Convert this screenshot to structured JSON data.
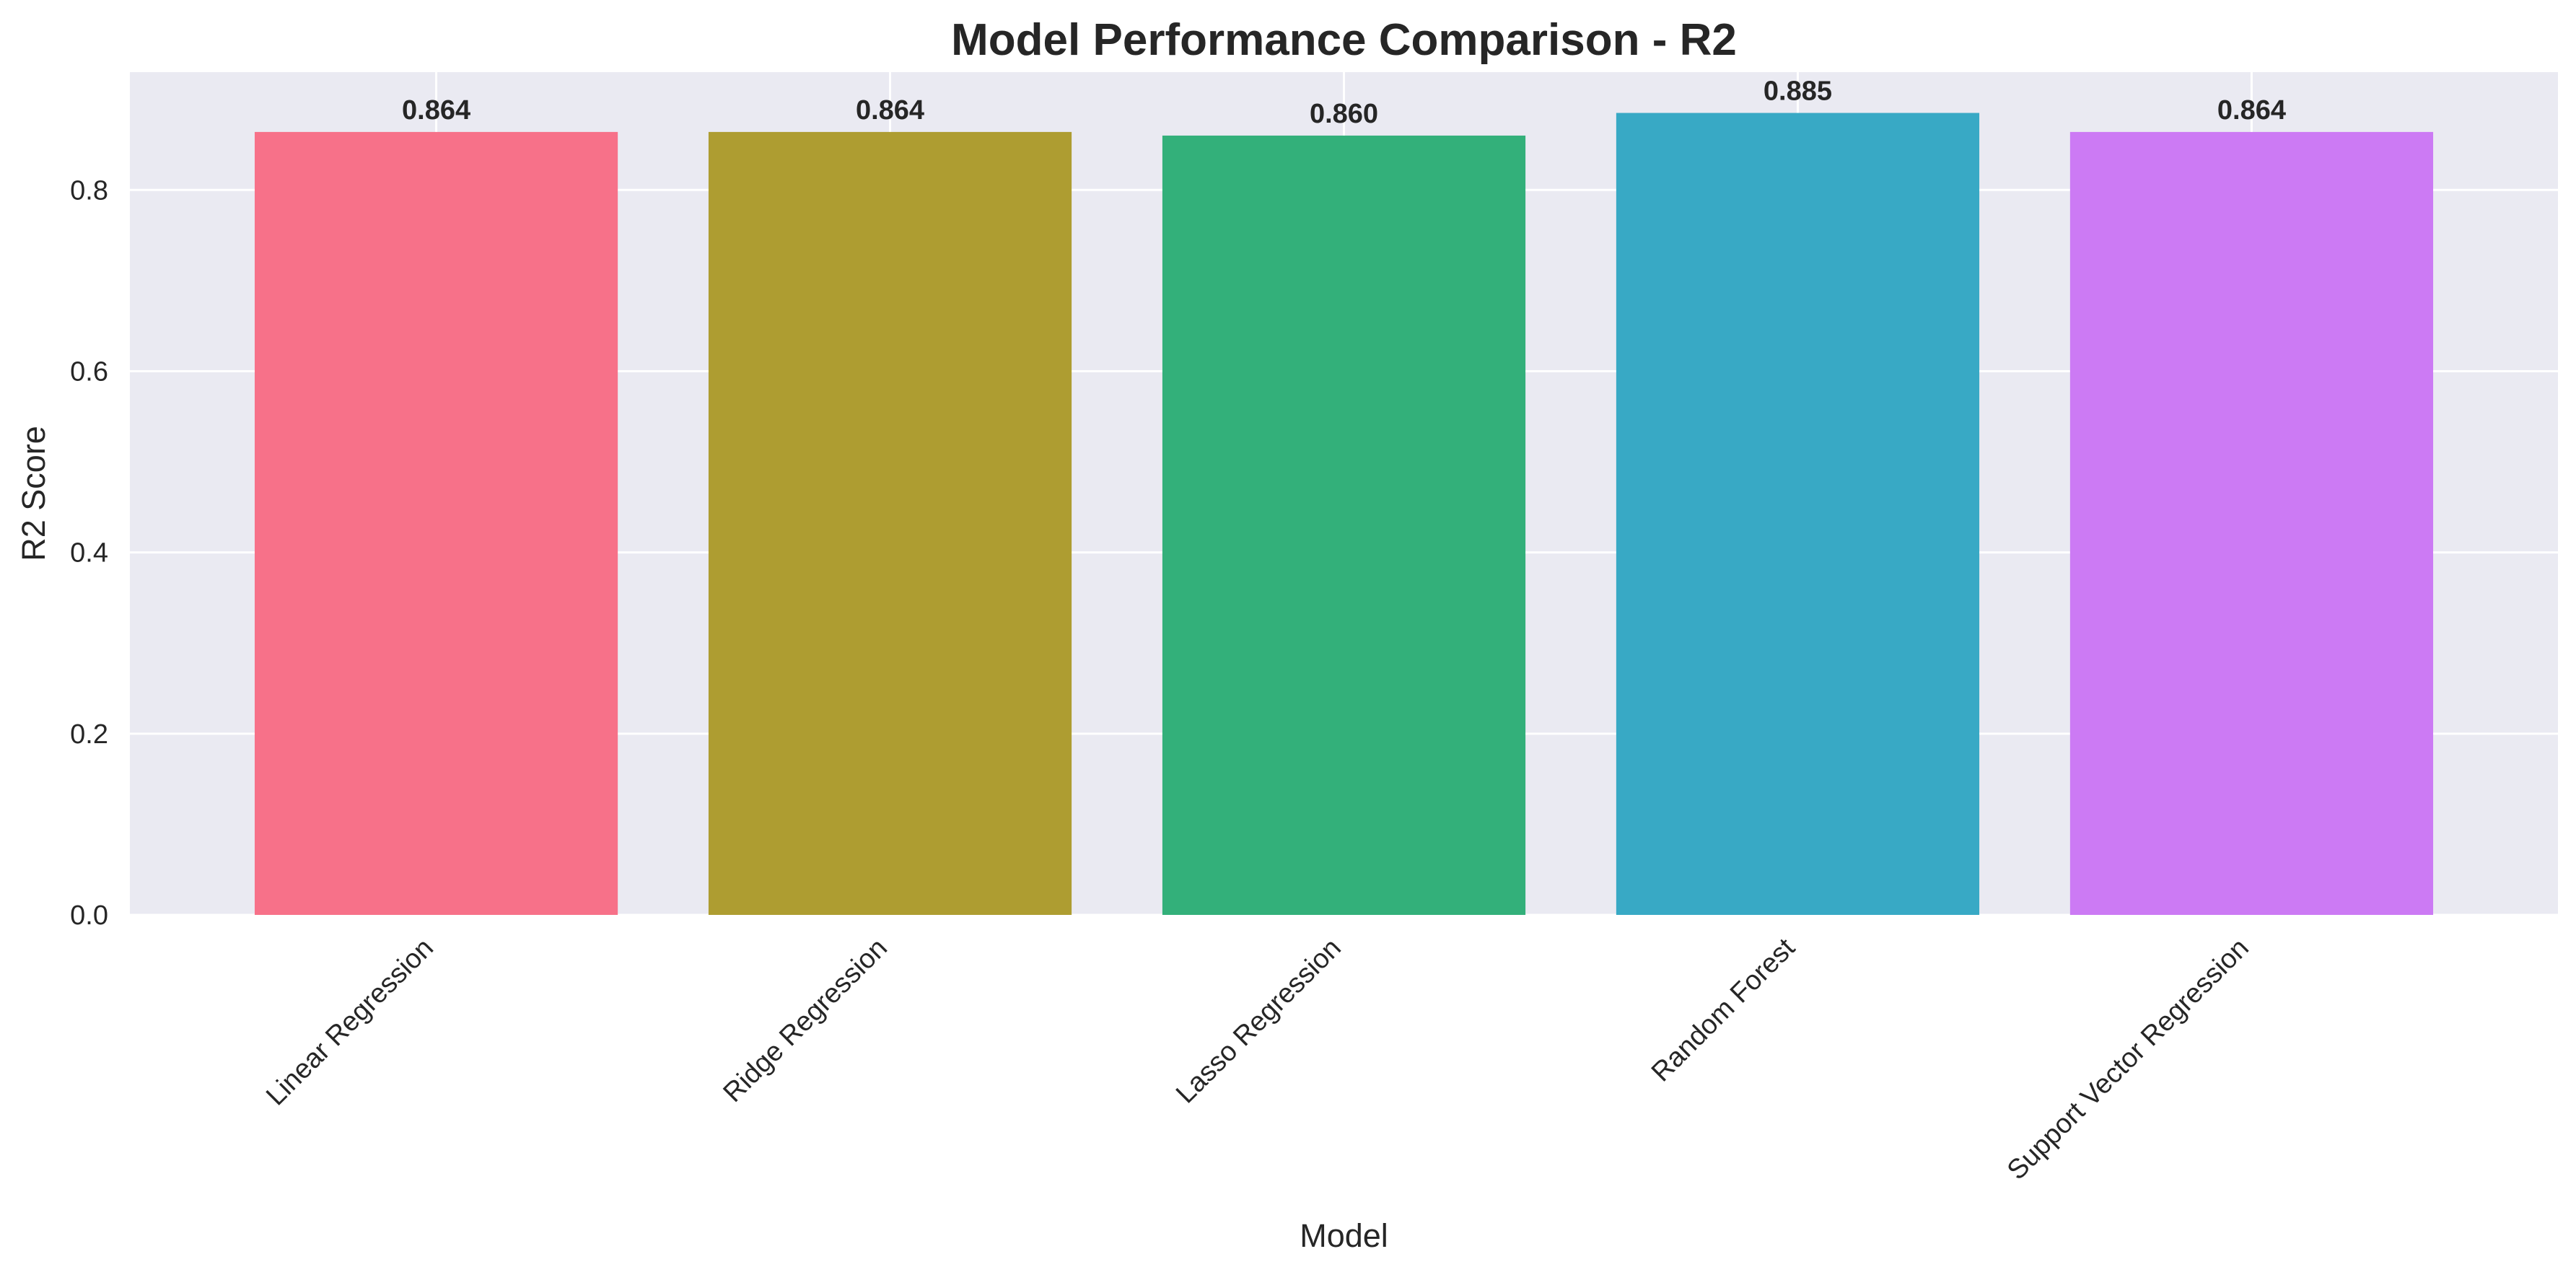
{
  "chart_data": {
    "type": "bar",
    "title": "Model Performance Comparison - R2",
    "xlabel": "Model",
    "ylabel": "R2 Score",
    "categories": [
      "Linear Regression",
      "Ridge Regression",
      "Lasso Regression",
      "Random Forest",
      "Support Vector Regression"
    ],
    "values": [
      0.864,
      0.864,
      0.86,
      0.885,
      0.864
    ],
    "value_labels": [
      "0.864",
      "0.864",
      "0.860",
      "0.885",
      "0.864"
    ],
    "colors": [
      "#f77189",
      "#ae9d31",
      "#33b07a",
      "#38a9c5",
      "#cc7af4"
    ],
    "yticks": [
      0.0,
      0.2,
      0.4,
      0.6,
      0.8
    ],
    "ytick_labels": [
      "0.0",
      "0.2",
      "0.4",
      "0.6",
      "0.8"
    ],
    "ylim": [
      0,
      0.93
    ],
    "grid": true,
    "background": "#eaeaf2",
    "legend": "none"
  }
}
